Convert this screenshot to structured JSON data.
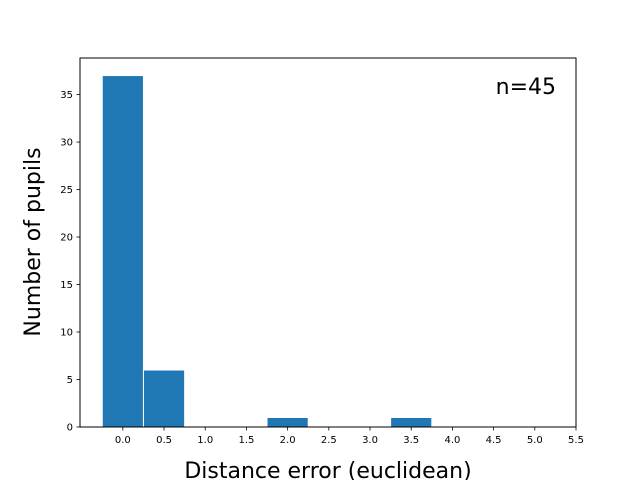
{
  "chart_data": {
    "type": "bar",
    "title": "",
    "xlabel": "Distance error (euclidean)",
    "ylabel": "Number of pupils",
    "annotation": "n=45",
    "xlim": [
      -0.52,
      5.5
    ],
    "ylim": [
      0,
      38.85
    ],
    "xticks": [
      "0.0",
      "0.5",
      "1.0",
      "1.5",
      "2.0",
      "2.5",
      "3.0",
      "3.5",
      "4.0",
      "4.5",
      "5.0",
      "5.5"
    ],
    "yticks": [
      "0",
      "5",
      "10",
      "15",
      "20",
      "25",
      "30",
      "35"
    ],
    "bin_width": 0.5,
    "bars": [
      {
        "x": 0.0,
        "value": 37
      },
      {
        "x": 0.5,
        "value": 6
      },
      {
        "x": 2.0,
        "value": 1
      },
      {
        "x": 3.5,
        "value": 1
      }
    ],
    "bar_color": "#1f77b4",
    "edge_color": "#ffffff",
    "grid": false,
    "legend": "none"
  }
}
